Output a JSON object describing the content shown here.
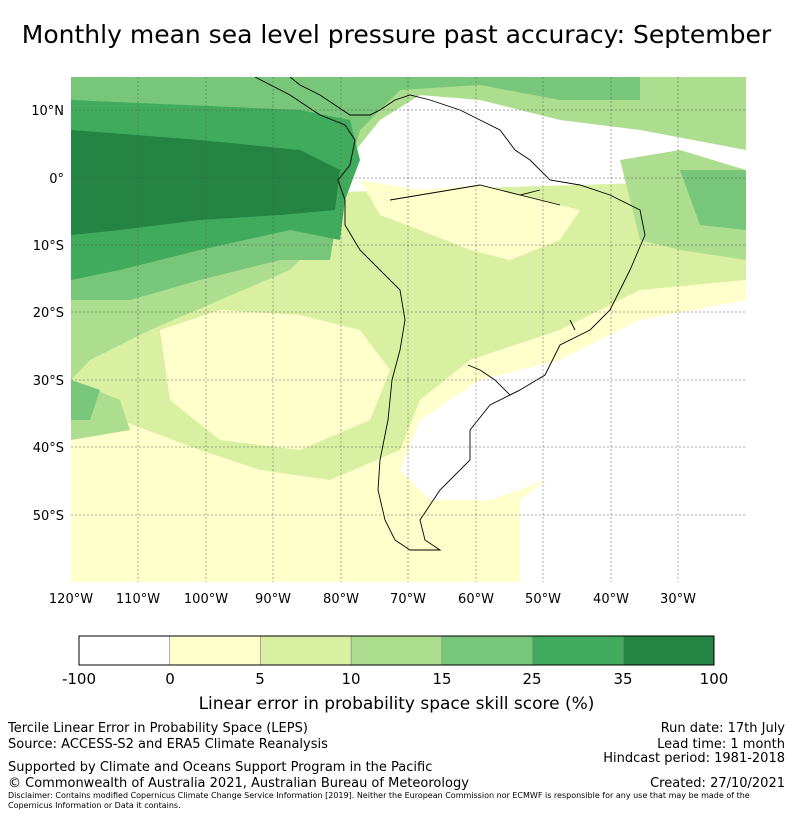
{
  "title": "Monthly mean sea level pressure past accuracy: September",
  "map": {
    "lon_ticks": [
      "120°W",
      "110°W",
      "100°W",
      "90°W",
      "80°W",
      "70°W",
      "60°W",
      "50°W",
      "40°W",
      "30°W"
    ],
    "lat_ticks": [
      "10°N",
      "0°",
      "10°S",
      "20°S",
      "30°S",
      "40°S",
      "50°S"
    ]
  },
  "colorbar": {
    "label": "Linear error in probability space skill score (%)",
    "ticks": [
      "-100",
      "0",
      "5",
      "10",
      "15",
      "25",
      "35",
      "100"
    ],
    "colors": [
      "#ffffff",
      "#ffffcc",
      "#d9f0a3",
      "#addd8e",
      "#78c679",
      "#41ab5d",
      "#238443"
    ]
  },
  "footer": {
    "left1": "Tercile Linear Error in Probability Space (LEPS)",
    "left2": "Source: ACCESS-S2 and ERA5 Climate Reanalysis",
    "left3": "Supported by Climate and Oceans Support Program in the Pacific",
    "left4": "© Commonwealth of Australia 2021, Australian Bureau of Meteorology",
    "right1": "Run date: 17th July",
    "right2": "Lead time: 1 month",
    "right3": "Hindcast period: 1981-2018",
    "right4": "Created: 27/10/2021",
    "disclaimer": "Disclaimer: Contains modified Copernicus Climate Change Service Information [2019]. Neither the European Commission nor ECMWF is responsible for any use that may be made of the Copernicus Information or Data it contains."
  }
}
